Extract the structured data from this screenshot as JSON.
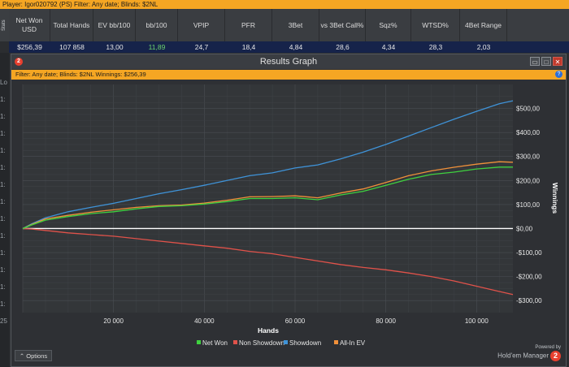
{
  "topbar": {
    "text": "Player: Igor020792 (PS)  Filter: Any date; Blinds: $2NL"
  },
  "stats_tab": "Stats",
  "stats": {
    "headers": [
      "Net Won USD",
      "Total Hands",
      "EV bb/100",
      "bb/100",
      "VPIP",
      "PFR",
      "3Bet",
      "vs 3Bet Call%",
      "Sqz%",
      "WTSD%",
      "4Bet Range"
    ],
    "values": [
      "$256,39",
      "107 858",
      "13,00",
      "11,89",
      "24,7",
      "18,4",
      "4,84",
      "28,6",
      "4,34",
      "28,3",
      "2,03"
    ]
  },
  "left_strip": [
    "Lo",
    "1:",
    "1:",
    "1:",
    "1:",
    "1:",
    "1:",
    "1:",
    "1:",
    "1:",
    "1:",
    "1:",
    "1:",
    "1:",
    "25"
  ],
  "window": {
    "title": "Results Graph",
    "logo": "2",
    "filter": "Filter: Any date; Blinds: $2NL  Winnings: $256,39",
    "help": "?",
    "options_label": "Options",
    "powered_by": "Powered by",
    "brand": "Hold'em Manager",
    "brand_logo": "2"
  },
  "chart_data": {
    "type": "line",
    "xlabel": "Hands",
    "ylabel": "Winnings",
    "xlim": [
      0,
      108000
    ],
    "ylim": [
      -350,
      600
    ],
    "x_ticks": [
      20000,
      40000,
      60000,
      80000,
      100000
    ],
    "x_tick_labels": [
      "20 000",
      "40 000",
      "60 000",
      "80 000",
      "100 000"
    ],
    "y_ticks": [
      500,
      400,
      300,
      200,
      100,
      0,
      -100,
      -200,
      -300
    ],
    "y_tick_labels": [
      "$500,00",
      "$400,00",
      "$300,00",
      "$200,00",
      "$100,00",
      "$0,00",
      "-$100,00",
      "-$200,00",
      "-$300,00"
    ],
    "legend_position": "bottom",
    "series": [
      {
        "name": "Net Won",
        "color": "#3fd13f",
        "x": [
          0,
          2000,
          5000,
          10000,
          15000,
          20000,
          25000,
          30000,
          35000,
          40000,
          45000,
          50000,
          55000,
          60000,
          65000,
          70000,
          75000,
          80000,
          85000,
          90000,
          95000,
          100000,
          105000,
          108000
        ],
        "y": [
          0,
          15,
          35,
          50,
          62,
          70,
          82,
          92,
          95,
          102,
          112,
          125,
          125,
          128,
          120,
          140,
          155,
          180,
          205,
          225,
          235,
          248,
          256,
          256
        ]
      },
      {
        "name": "Non Showdown",
        "color": "#e0524a",
        "x": [
          0,
          2000,
          5000,
          10000,
          15000,
          20000,
          25000,
          30000,
          35000,
          40000,
          45000,
          50000,
          55000,
          60000,
          65000,
          70000,
          75000,
          80000,
          85000,
          90000,
          95000,
          100000,
          105000,
          108000
        ],
        "y": [
          0,
          -2,
          -8,
          -18,
          -25,
          -32,
          -42,
          -52,
          -62,
          -72,
          -82,
          -95,
          -105,
          -120,
          -135,
          -150,
          -162,
          -172,
          -185,
          -200,
          -218,
          -240,
          -262,
          -275
        ]
      },
      {
        "name": "Showdown",
        "color": "#3f93d8",
        "x": [
          0,
          2000,
          5000,
          10000,
          15000,
          20000,
          25000,
          30000,
          35000,
          40000,
          45000,
          50000,
          55000,
          60000,
          65000,
          70000,
          75000,
          80000,
          85000,
          90000,
          95000,
          100000,
          105000,
          108000
        ],
        "y": [
          0,
          20,
          45,
          70,
          88,
          105,
          125,
          145,
          162,
          180,
          200,
          220,
          232,
          252,
          265,
          290,
          318,
          350,
          385,
          420,
          455,
          488,
          520,
          532
        ]
      },
      {
        "name": "All-In EV",
        "color": "#f0903a",
        "x": [
          0,
          2000,
          5000,
          10000,
          15000,
          20000,
          25000,
          30000,
          35000,
          40000,
          45000,
          50000,
          55000,
          60000,
          65000,
          70000,
          75000,
          80000,
          85000,
          90000,
          95000,
          100000,
          105000,
          108000
        ],
        "y": [
          0,
          17,
          40,
          55,
          68,
          78,
          88,
          95,
          98,
          106,
          118,
          132,
          133,
          136,
          128,
          148,
          165,
          192,
          220,
          240,
          255,
          268,
          278,
          276
        ]
      }
    ]
  }
}
